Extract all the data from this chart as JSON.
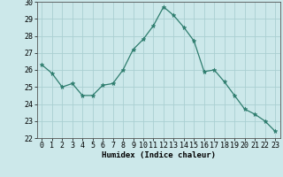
{
  "x": [
    0,
    1,
    2,
    3,
    4,
    5,
    6,
    7,
    8,
    9,
    10,
    11,
    12,
    13,
    14,
    15,
    16,
    17,
    18,
    19,
    20,
    21,
    22,
    23
  ],
  "y": [
    26.3,
    25.8,
    25.0,
    25.2,
    24.5,
    24.5,
    25.1,
    25.2,
    26.0,
    27.2,
    27.8,
    28.6,
    29.7,
    29.2,
    28.5,
    27.7,
    25.9,
    26.0,
    25.3,
    24.5,
    23.7,
    23.4,
    23.0,
    22.4
  ],
  "line_color": "#2e7d6e",
  "marker": "*",
  "marker_size": 3.5,
  "bg_color": "#cce8ea",
  "grid_color": "#aacfd2",
  "xlabel": "Humidex (Indice chaleur)",
  "ylim": [
    22,
    30
  ],
  "yticks": [
    22,
    23,
    24,
    25,
    26,
    27,
    28,
    29,
    30
  ],
  "xticks": [
    0,
    1,
    2,
    3,
    4,
    5,
    6,
    7,
    8,
    9,
    10,
    11,
    12,
    13,
    14,
    15,
    16,
    17,
    18,
    19,
    20,
    21,
    22,
    23
  ],
  "label_fontsize": 6.5,
  "tick_fontsize": 6
}
